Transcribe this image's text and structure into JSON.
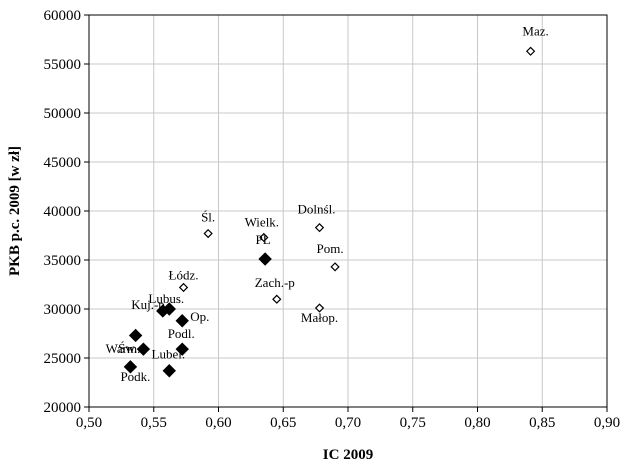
{
  "chart_data": {
    "type": "scatter",
    "title": "",
    "xlabel": "IC 2009",
    "ylabel": "PKB p.c. 2009 [w zł]",
    "xlim": [
      0.5,
      0.9
    ],
    "ylim": [
      20000,
      60000
    ],
    "x_ticks": [
      "0,50",
      "0,55",
      "0,60",
      "0,65",
      "0,70",
      "0,75",
      "0,80",
      "0,85",
      "0,90"
    ],
    "y_ticks": [
      "20000",
      "25000",
      "30000",
      "35000",
      "40000",
      "45000",
      "50000",
      "55000",
      "60000"
    ],
    "grid": true,
    "marker_open_color": "#ffffff",
    "marker_filled_color": "#000000",
    "points": [
      {
        "label": "Maz.",
        "x": 0.841,
        "y": 56300,
        "marker": "open"
      },
      {
        "label": "Dolnśl.",
        "x": 0.678,
        "y": 38300,
        "marker": "open"
      },
      {
        "label": "Śl.",
        "x": 0.592,
        "y": 37700,
        "marker": "open"
      },
      {
        "label": "Wielk.",
        "x": 0.635,
        "y": 37300,
        "marker": "open"
      },
      {
        "label": "Pom.",
        "x": 0.69,
        "y": 34300,
        "marker": "open"
      },
      {
        "label": "Łódz.",
        "x": 0.573,
        "y": 32200,
        "marker": "open"
      },
      {
        "label": "Zach.-p",
        "x": 0.645,
        "y": 31000,
        "marker": "open"
      },
      {
        "label": "Małop.",
        "x": 0.678,
        "y": 30100,
        "marker": "open"
      },
      {
        "label": "PL",
        "x": 0.636,
        "y": 35100,
        "marker": "filled"
      },
      {
        "label": "Lubus.",
        "x": 0.562,
        "y": 30000,
        "marker": "filled"
      },
      {
        "label": "Kuj.-p",
        "x": 0.557,
        "y": 29800,
        "marker": "filled"
      },
      {
        "label": "Op.",
        "x": 0.572,
        "y": 28800,
        "marker": "filled"
      },
      {
        "label": "Św.",
        "x": 0.536,
        "y": 27300,
        "marker": "filled"
      },
      {
        "label": "Warm.",
        "x": 0.542,
        "y": 25900,
        "marker": "filled"
      },
      {
        "label": "Podl.",
        "x": 0.572,
        "y": 25900,
        "marker": "filled"
      },
      {
        "label": "Lubel.",
        "x": 0.562,
        "y": 23700,
        "marker": "filled"
      },
      {
        "label": "Podk.",
        "x": 0.532,
        "y": 24100,
        "marker": "filled"
      }
    ]
  }
}
